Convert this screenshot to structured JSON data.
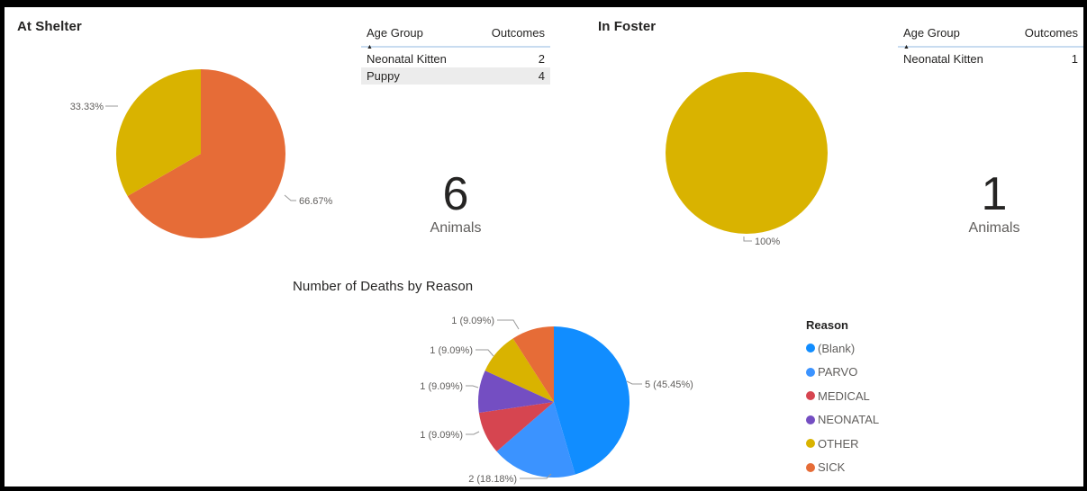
{
  "shelter": {
    "title": "At Shelter",
    "table": {
      "col1": "Age Group",
      "col2": "Outcomes",
      "rows": [
        {
          "label": "Neonatal Kitten",
          "value": "2"
        },
        {
          "label": "Puppy",
          "value": "4"
        }
      ]
    },
    "count": "6",
    "count_label": "Animals"
  },
  "foster": {
    "title": "In Foster",
    "table": {
      "col1": "Age Group",
      "col2": "Outcomes",
      "rows": [
        {
          "label": "Neonatal Kitten",
          "value": "1"
        }
      ]
    },
    "count": "1",
    "count_label": "Animals"
  },
  "deaths": {
    "title": "Number of Deaths by Reason",
    "legend_title": "Reason"
  },
  "colors": {
    "blank": "#118dff",
    "parvo": "#3b93ff",
    "medical": "#d64550",
    "neonatal": "#744ec2",
    "other": "#d9b300",
    "sick": "#e66c37"
  },
  "chart_data": [
    {
      "type": "pie",
      "title": "At Shelter",
      "slices": [
        {
          "value": 66.67,
          "label": "66.67%",
          "color": "#e66c37"
        },
        {
          "value": 33.33,
          "label": "33.33%",
          "color": "#d9b300"
        }
      ]
    },
    {
      "type": "pie",
      "title": "In Foster",
      "slices": [
        {
          "value": 100,
          "label": "100%",
          "color": "#d9b300"
        }
      ]
    },
    {
      "type": "pie",
      "title": "Number of Deaths by Reason",
      "legend_title": "Reason",
      "legend_position": "right",
      "slices": [
        {
          "name": "(Blank)",
          "value": 5,
          "label": "5 (45.45%)",
          "color": "#118dff"
        },
        {
          "name": "PARVO",
          "value": 2,
          "label": "2 (18.18%)",
          "color": "#3b93ff"
        },
        {
          "name": "MEDICAL",
          "value": 1,
          "label": "1 (9.09%)",
          "color": "#d64550"
        },
        {
          "name": "NEONATAL",
          "value": 1,
          "label": "1 (9.09%)",
          "color": "#744ec2"
        },
        {
          "name": "OTHER",
          "value": 1,
          "label": "1 (9.09%)",
          "color": "#d9b300"
        },
        {
          "name": "SICK",
          "value": 1,
          "label": "1 (9.09%)",
          "color": "#e66c37"
        }
      ]
    }
  ]
}
